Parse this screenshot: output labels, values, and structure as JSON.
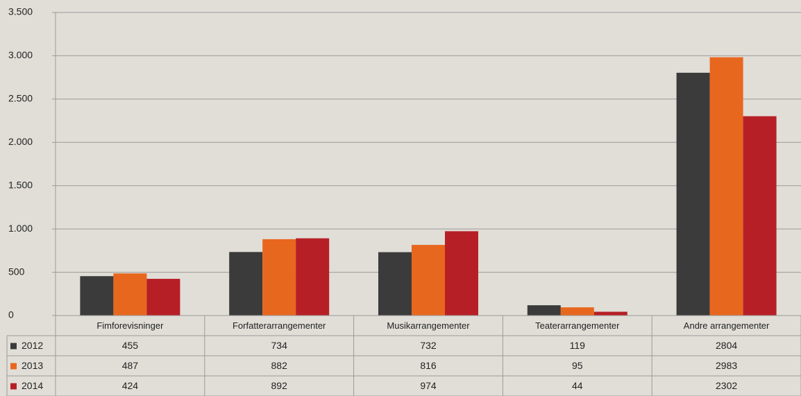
{
  "chart_data": {
    "type": "bar",
    "categories": [
      "Fimforevisninger",
      "Forfatterarrangementer",
      "Musikarrangementer",
      "Teaterarrangementer",
      "Andre arrangementer"
    ],
    "series": [
      {
        "name": "2012",
        "color": "#3b3b3b",
        "values": [
          455,
          734,
          732,
          119,
          2804
        ]
      },
      {
        "name": "2013",
        "color": "#e8671e",
        "values": [
          487,
          882,
          816,
          95,
          2983
        ]
      },
      {
        "name": "2014",
        "color": "#b71f26",
        "values": [
          424,
          892,
          974,
          44,
          2302
        ]
      }
    ],
    "ylim": [
      0,
      3500
    ],
    "yticks": [
      0,
      500,
      {
        "value": 1000,
        "label": "1.000"
      },
      {
        "value": 1500,
        "label": "1.500"
      },
      {
        "value": 2000,
        "label": "2.000"
      },
      {
        "value": 2500,
        "label": "2.500"
      },
      {
        "value": 3000,
        "label": "3.000"
      },
      {
        "value": 3500,
        "label": "3.500"
      }
    ],
    "grid": true
  }
}
